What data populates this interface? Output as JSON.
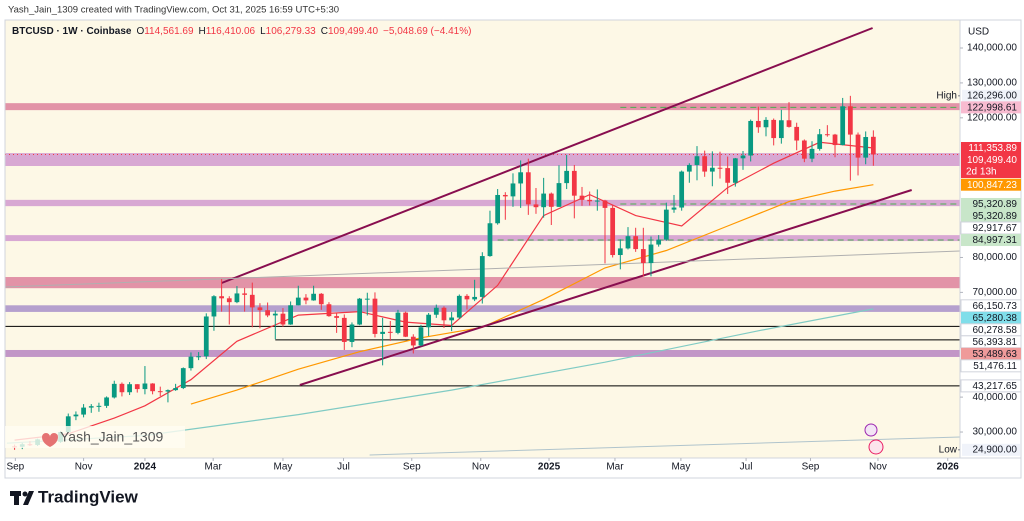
{
  "credit": "Yash_Jain_1309 created with TradingView.com, Oct 31, 2025 16:59 UTC+5:30",
  "footer": "TradingView",
  "watermark": "Yash_Jain_1309",
  "chart_data": {
    "type": "candlestick",
    "title": "BTCUSD · 1W · Coinbase",
    "ohlc_legend": [
      {
        "key": "O",
        "value": "114,561.69"
      },
      {
        "key": "H",
        "value": "116,410.06"
      },
      {
        "key": "L",
        "value": "106,279.33"
      },
      {
        "key": "C",
        "value": "109,499.40"
      }
    ],
    "change": "−5,048.69 (−4.41%)",
    "currency": "USD",
    "up_color": "#089981",
    "down_color": "#f23645",
    "x": [
      -17,
      -16,
      -15,
      -14,
      -13,
      -12,
      -11,
      -10,
      -9,
      -8,
      -7,
      -6,
      -5,
      -4,
      -3,
      -2,
      -1,
      0,
      1,
      2,
      3,
      4,
      5,
      6,
      7,
      8,
      9,
      10,
      11,
      12,
      13,
      14,
      15,
      16,
      17,
      18,
      19,
      20,
      21,
      22,
      23,
      24,
      25,
      26,
      27,
      28,
      29,
      30,
      31,
      32,
      33,
      34,
      35,
      36,
      37,
      38,
      39,
      40,
      41,
      42,
      43,
      44,
      45,
      46,
      47,
      48,
      49,
      50,
      51,
      52,
      53,
      54,
      55,
      56,
      57,
      58,
      59,
      60,
      61,
      62,
      63,
      64,
      65,
      66,
      67,
      68,
      69,
      70,
      71,
      72,
      73,
      74,
      75,
      76,
      77,
      78,
      79,
      80,
      81,
      82,
      83,
      84,
      85,
      86,
      87,
      88,
      89,
      90,
      91,
      92,
      93,
      94,
      95
    ],
    "open": [
      25900,
      25800,
      26500,
      26300,
      27900,
      27900,
      27200,
      30000,
      34500,
      35000,
      37000,
      37400,
      37500,
      39900,
      43800,
      41400,
      43700,
      42300,
      43900,
      41700,
      41600,
      42000,
      42600,
      48300,
      51600,
      51700,
      63100,
      68900,
      68300,
      67200,
      69700,
      69300,
      65700,
      64900,
      63400,
      63900,
      60800,
      66300,
      68500,
      67700,
      69600,
      66600,
      63200,
      62700,
      55800,
      60800,
      68200,
      68200,
      58100,
      58700,
      58400,
      64200,
      57300,
      54800,
      60000,
      63600,
      65600,
      62000,
      62800,
      69000,
      68000,
      68700,
      80400,
      89800,
      97900,
      97500,
      101200,
      104400,
      95200,
      94400,
      98300,
      94500,
      101300,
      104800,
      97700,
      96500,
      96100,
      96300,
      94200,
      80700,
      82600,
      86100,
      82400,
      78400,
      83700,
      85100,
      93700,
      94300,
      104600,
      106500,
      109000,
      104600,
      105700,
      105600,
      101400,
      108400,
      109200,
      119100,
      117300,
      119400,
      114200,
      119300,
      117400,
      113500,
      108300,
      111100,
      115300,
      115200,
      112200,
      123300,
      115200,
      108600,
      114561.69
    ],
    "high": [
      26400,
      26900,
      27400,
      28100,
      28600,
      28000,
      30300,
      35300,
      35900,
      38000,
      38000,
      38400,
      40200,
      44700,
      44200,
      44300,
      43700,
      48900,
      44000,
      43000,
      42200,
      43800,
      48500,
      52800,
      52900,
      64000,
      69200,
      73800,
      68900,
      71800,
      71300,
      72800,
      66900,
      67100,
      64800,
      65500,
      67400,
      71900,
      69500,
      71900,
      69800,
      67200,
      64000,
      63700,
      61400,
      68400,
      69900,
      70000,
      62700,
      61800,
      65000,
      64500,
      58000,
      60700,
      64100,
      66500,
      66000,
      64400,
      69400,
      69500,
      73600,
      81500,
      93400,
      99600,
      98700,
      104100,
      107800,
      108300,
      99900,
      102800,
      98600,
      106400,
      109400,
      106500,
      100200,
      98900,
      99500,
      96500,
      95000,
      85200,
      88700,
      88500,
      88500,
      86000,
      86400,
      95700,
      97900,
      104900,
      107000,
      111900,
      110600,
      110400,
      110300,
      108900,
      108500,
      110500,
      119500,
      123200,
      120200,
      119800,
      122300,
      124500,
      118600,
      113800,
      113300,
      116800,
      117900,
      115400,
      125700,
      126296,
      115800,
      116100,
      116410.06
    ],
    "low": [
      24900,
      25100,
      26000,
      26000,
      27200,
      26600,
      26900,
      29700,
      33400,
      34200,
      35500,
      35800,
      36900,
      39600,
      40200,
      40600,
      41300,
      40800,
      40800,
      40300,
      38500,
      41800,
      42300,
      47600,
      50600,
      50900,
      59000,
      64500,
      60800,
      66900,
      64500,
      60000,
      59700,
      62900,
      56600,
      60200,
      60700,
      66300,
      66600,
      67600,
      65000,
      63000,
      58400,
      53500,
      54300,
      60600,
      63400,
      57100,
      49100,
      56100,
      58000,
      57200,
      52500,
      54600,
      57500,
      62700,
      59800,
      58900,
      62400,
      65100,
      67500,
      66800,
      80200,
      89400,
      90800,
      94500,
      94200,
      92200,
      92500,
      91400,
      89300,
      94500,
      99600,
      91200,
      94800,
      94900,
      93400,
      78300,
      80000,
      76600,
      82300,
      81600,
      74500,
      74600,
      83100,
      84800,
      92800,
      93400,
      101400,
      102100,
      103100,
      100400,
      102600,
      98200,
      100300,
      105100,
      107500,
      115700,
      114700,
      112100,
      112600,
      117200,
      110700,
      107300,
      107300,
      110600,
      114600,
      108700,
      112100,
      102000,
      103500,
      106700,
      106279.33
    ],
    "close": [
      25800,
      26500,
      26300,
      27900,
      27900,
      27200,
      30000,
      34500,
      35000,
      37000,
      37400,
      37500,
      39900,
      43800,
      41400,
      43700,
      42300,
      43900,
      41700,
      41600,
      42000,
      42600,
      48300,
      51600,
      51700,
      63100,
      68900,
      68300,
      67200,
      69700,
      69300,
      65700,
      64900,
      63400,
      63900,
      60800,
      66300,
      68500,
      67700,
      69600,
      66600,
      63200,
      62700,
      55800,
      60800,
      68200,
      68200,
      58100,
      58700,
      58400,
      64200,
      57300,
      54800,
      60000,
      63600,
      65600,
      62000,
      62800,
      69000,
      68000,
      68700,
      80400,
      89800,
      97900,
      97500,
      101200,
      104400,
      95200,
      94400,
      98300,
      94500,
      101300,
      104800,
      97700,
      96500,
      96100,
      96300,
      94200,
      80700,
      82600,
      86100,
      82400,
      78400,
      83700,
      85100,
      93700,
      94300,
      104600,
      106500,
      109000,
      104600,
      105700,
      105600,
      101400,
      108400,
      109200,
      119100,
      117300,
      119400,
      114200,
      119300,
      117400,
      113500,
      108300,
      111100,
      115300,
      115200,
      112200,
      123300,
      115200,
      108600,
      114500,
      109499.4
    ],
    "xlim": [
      -18.25,
      106.3
    ],
    "xticks": [
      {
        "value": -16.9,
        "label": "Sep"
      },
      {
        "value": -8.0,
        "label": "Nov"
      },
      {
        "value": 0,
        "label": "2024"
      },
      {
        "value": 8.9,
        "label": "Mar"
      },
      {
        "value": 18.0,
        "label": "May"
      },
      {
        "value": 25.9,
        "label": "Jul"
      },
      {
        "value": 34.8,
        "label": "Sep"
      },
      {
        "value": 43.8,
        "label": "Nov"
      },
      {
        "value": 52.7,
        "label": "2025"
      },
      {
        "value": 61.3,
        "label": "Mar"
      },
      {
        "value": 69.9,
        "label": "May"
      },
      {
        "value": 78.4,
        "label": "Jul"
      },
      {
        "value": 86.8,
        "label": "Sep"
      },
      {
        "value": 95.6,
        "label": "Nov"
      },
      {
        "value": 104.7,
        "label": "2026"
      }
    ],
    "ylim": [
      22560,
      148020
    ],
    "yticks": [
      {
        "value": 140000,
        "label": "140,000.00"
      },
      {
        "value": 130000,
        "label": "130,000.00"
      },
      {
        "value": 120000,
        "label": "120,000.00"
      },
      {
        "value": 80000,
        "label": "80,000.00"
      },
      {
        "value": 70000,
        "label": "70,000.00"
      },
      {
        "value": 40000,
        "label": "40,000.00"
      },
      {
        "value": 30000,
        "label": "30,000.00"
      }
    ],
    "extremes": [
      {
        "label": "High",
        "value": 126296,
        "value_label": "126,296.00"
      },
      {
        "label": "Low",
        "value": 24900,
        "value_label": "24,900.00"
      }
    ],
    "levels": [
      {
        "value": 122998.61,
        "label": "122,998.61",
        "bg": "#f8bbd0",
        "fg": "#131722",
        "line_style": "dashed",
        "line_color": "#4caf50",
        "start": 62
      },
      {
        "value": 111353.89,
        "label": "111,353.89",
        "bg": "#f23645",
        "fg": "#ffffff",
        "line_style": "none"
      },
      {
        "value": 109499.4,
        "label": "109,499.40",
        "bg": "#f23645",
        "fg": "#ffffff",
        "line_style": "dotted",
        "line_color": "#f23645",
        "countdown": "2d 13h"
      },
      {
        "value": 100847.23,
        "label": "100,847.23",
        "bg": "#ff9800",
        "fg": "#ffffff",
        "line_style": "none"
      },
      {
        "value": 95320.89,
        "label": "95,320.89",
        "bg": "#c8e6c9",
        "fg": "#131722",
        "line_style": "dashed",
        "line_color": "#4caf50",
        "start": 62
      },
      {
        "value": 95320.89,
        "label": "95,320.89",
        "bg": "#c8e6c9",
        "fg": "#131722",
        "line_style": "none"
      },
      {
        "value": 92917.67,
        "label": "92,917.67",
        "bg": "#ffffff",
        "fg": "#131722",
        "line_style": "none"
      },
      {
        "value": 84997.31,
        "label": "84,997.31",
        "bg": "#c8e6c9",
        "fg": "#131722",
        "line_style": "dashed",
        "line_color": "#4caf50",
        "start": 46
      },
      {
        "value": 66150.73,
        "label": "66,150.73",
        "bg": "#ffffff",
        "fg": "#131722",
        "line_style": "none"
      },
      {
        "value": 65280.38,
        "label": "65,280.38",
        "bg": "#80deea",
        "fg": "#131722",
        "line_style": "none"
      },
      {
        "value": 60278.58,
        "label": "60,278.58",
        "bg": "#ffffff",
        "fg": "#131722",
        "line_style": "solid",
        "line_color": "#000000",
        "start": -18.25
      },
      {
        "value": 56393.81,
        "label": "56,393.81",
        "bg": "#ffffff",
        "fg": "#131722",
        "line_style": "solid",
        "line_color": "#000000",
        "start": 17
      },
      {
        "value": 53489.63,
        "label": "53,489.63",
        "bg": "#ef9a9a",
        "fg": "#131722",
        "line_style": "none"
      },
      {
        "value": 51476.11,
        "label": "51,476.11",
        "bg": "#ffffff",
        "fg": "#131722",
        "line_style": "none"
      },
      {
        "value": 43217.65,
        "label": "43,217.65",
        "bg": "#ffffff",
        "fg": "#131722",
        "line_style": "solid",
        "line_color": "#000000",
        "start": 5
      }
    ],
    "zones": [
      {
        "from": 122200,
        "to": 124200,
        "color": "#c2185b"
      },
      {
        "from": 106200,
        "to": 109900,
        "color": "#ab47bc"
      },
      {
        "from": 94700,
        "to": 96500,
        "color": "#ab47bc"
      },
      {
        "from": 84700,
        "to": 86400,
        "color": "#ab47bc"
      },
      {
        "from": 71200,
        "to": 74400,
        "color": "#c2185b"
      },
      {
        "from": 64400,
        "to": 66300,
        "color": "#5e35b1"
      },
      {
        "from": 51500,
        "to": 53500,
        "color": "#7b1fa2"
      }
    ],
    "trendlines": [
      {
        "x": [
          10.0,
          94.9
        ],
        "y": [
          72690,
          145730
        ],
        "color": "#880e4f",
        "width": 2
      },
      {
        "x": [
          20.2,
          100.0
        ],
        "y": [
          43470,
          99320
        ],
        "color": "#880e4f",
        "width": 2
      },
      {
        "x": [
          -18.25,
          106.3
        ],
        "y": [
          71540,
          81850
        ],
        "color": "#b0b0b0",
        "width": 1
      },
      {
        "x": [
          29.3,
          106.3
        ],
        "y": [
          23420,
          28570
        ],
        "color": "#b0c4cc",
        "width": 1
      }
    ],
    "indicators": [
      {
        "color": "#f23645",
        "x": [
          -17,
          -10,
          -4,
          0,
          6,
          12,
          20,
          28,
          34,
          40,
          46,
          52,
          58,
          64,
          70,
          76,
          82,
          88,
          95
        ],
        "values": [
          27700,
          29500,
          34000,
          37500,
          45000,
          56000,
          63500,
          64500,
          61500,
          60500,
          72000,
          92000,
          98000,
          92000,
          89000,
          100000,
          107000,
          113000,
          111353.89
        ]
      },
      {
        "color": "#ff9800",
        "x": [
          6,
          12,
          20,
          28,
          36,
          44,
          52,
          60,
          68,
          76,
          84,
          90,
          95
        ],
        "values": [
          38000,
          42000,
          48000,
          53000,
          57000,
          60000,
          68000,
          77000,
          82000,
          89000,
          96000,
          99000,
          100847.23
        ]
      },
      {
        "color": "#80cbc4",
        "x": [
          -18,
          0,
          20,
          40,
          60,
          80,
          95
        ],
        "values": [
          26800,
          29000,
          35000,
          42000,
          50000,
          59000,
          65280.38
        ]
      }
    ]
  }
}
